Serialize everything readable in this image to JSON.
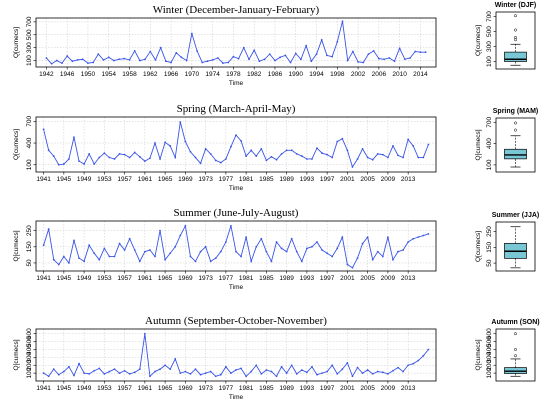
{
  "chart_data": [
    {
      "type": "line",
      "title": "Winter (December-January-February)",
      "xlabel": "Time",
      "ylabel": "Q[cumecs]",
      "xlim": [
        1940,
        2017
      ],
      "ylim": [
        0,
        760
      ],
      "xticks": [
        1942,
        1946,
        1950,
        1954,
        1958,
        1962,
        1966,
        1970,
        1974,
        1978,
        1982,
        1986,
        1990,
        1994,
        1998,
        2002,
        2006,
        2010,
        2014
      ],
      "yticks": [
        100,
        300,
        500,
        700
      ],
      "grid": true,
      "color": "#3a55e8",
      "x": [
        1942,
        1943,
        1944,
        1945,
        1946,
        1947,
        1948,
        1949,
        1950,
        1951,
        1952,
        1953,
        1954,
        1955,
        1956,
        1957,
        1958,
        1959,
        1960,
        1961,
        1962,
        1963,
        1964,
        1965,
        1966,
        1967,
        1968,
        1969,
        1970,
        1971,
        1972,
        1973,
        1974,
        1975,
        1976,
        1977,
        1978,
        1979,
        1980,
        1981,
        1982,
        1983,
        1984,
        1985,
        1986,
        1987,
        1988,
        1989,
        1990,
        1991,
        1992,
        1993,
        1994,
        1995,
        1996,
        1997,
        1998,
        1999,
        2000,
        2001,
        2002,
        2003,
        2004,
        2005,
        2006,
        2007,
        2008,
        2009,
        2010,
        2011,
        2012,
        2013,
        2014,
        2015
      ],
      "y": [
        140,
        50,
        100,
        60,
        170,
        90,
        110,
        120,
        60,
        70,
        200,
        110,
        150,
        100,
        120,
        130,
        110,
        250,
        100,
        120,
        240,
        110,
        300,
        90,
        70,
        220,
        150,
        100,
        520,
        250,
        70,
        90,
        110,
        140,
        60,
        70,
        160,
        130,
        300,
        120,
        260,
        90,
        120,
        200,
        100,
        150,
        180,
        70,
        210,
        120,
        330,
        90,
        200,
        420,
        180,
        160,
        390,
        710,
        100,
        240,
        80,
        70,
        200,
        250,
        130,
        120,
        140,
        90,
        290,
        120,
        140,
        240,
        230,
        230
      ]
    },
    {
      "type": "line",
      "title": "Spring (March-April-May)",
      "xlabel": "Time",
      "ylabel": "Q[cumecs]",
      "xlim": [
        1939.5,
        2018.5
      ],
      "ylim": [
        0,
        760
      ],
      "xticks": [
        1941,
        1945,
        1949,
        1953,
        1957,
        1961,
        1965,
        1969,
        1973,
        1977,
        1981,
        1985,
        1989,
        1993,
        1997,
        2001,
        2005,
        2009,
        2013
      ],
      "yticks": [
        100,
        400,
        700
      ],
      "grid": true,
      "color": "#3a55e8",
      "x": [
        1941,
        1942,
        1943,
        1944,
        1945,
        1946,
        1947,
        1948,
        1949,
        1950,
        1951,
        1952,
        1953,
        1954,
        1955,
        1956,
        1957,
        1958,
        1959,
        1960,
        1961,
        1962,
        1963,
        1964,
        1965,
        1966,
        1967,
        1968,
        1969,
        1970,
        1971,
        1972,
        1973,
        1974,
        1975,
        1976,
        1977,
        1978,
        1979,
        1980,
        1981,
        1982,
        1983,
        1984,
        1985,
        1986,
        1987,
        1988,
        1989,
        1990,
        1991,
        1992,
        1993,
        1994,
        1995,
        1996,
        1997,
        1998,
        1999,
        2000,
        2001,
        2002,
        2003,
        2004,
        2005,
        2006,
        2007,
        2008,
        2009,
        2010,
        2011,
        2012,
        2013,
        2014,
        2015,
        2016,
        2017
      ],
      "y": [
        590,
        300,
        220,
        100,
        110,
        180,
        480,
        150,
        110,
        250,
        110,
        200,
        260,
        200,
        180,
        250,
        240,
        200,
        270,
        210,
        150,
        190,
        400,
        180,
        410,
        360,
        200,
        690,
        420,
        280,
        200,
        120,
        320,
        250,
        160,
        130,
        180,
        350,
        510,
        430,
        220,
        300,
        220,
        320,
        160,
        210,
        170,
        250,
        300,
        300,
        250,
        220,
        180,
        180,
        330,
        260,
        240,
        200,
        420,
        460,
        300,
        70,
        180,
        320,
        200,
        170,
        250,
        240,
        200,
        360,
        230,
        200,
        450,
        360,
        200,
        200,
        380
      ]
    },
    {
      "type": "line",
      "title": "Summer (June-July-August)",
      "xlabel": "Time",
      "ylabel": "Q[cumecs]",
      "xlim": [
        1939.5,
        2018.5
      ],
      "ylim": [
        0,
        310
      ],
      "xticks": [
        1941,
        1945,
        1949,
        1953,
        1957,
        1961,
        1965,
        1969,
        1973,
        1977,
        1981,
        1985,
        1989,
        1993,
        1997,
        2001,
        2005,
        2009,
        2013
      ],
      "yticks": [
        50,
        150,
        250
      ],
      "grid": true,
      "color": "#3a55e8",
      "x": [
        1941,
        1942,
        1943,
        1944,
        1945,
        1946,
        1947,
        1948,
        1949,
        1950,
        1951,
        1952,
        1953,
        1954,
        1955,
        1956,
        1957,
        1958,
        1959,
        1960,
        1961,
        1962,
        1963,
        1964,
        1965,
        1966,
        1967,
        1968,
        1969,
        1970,
        1971,
        1972,
        1973,
        1974,
        1975,
        1976,
        1977,
        1978,
        1979,
        1980,
        1981,
        1982,
        1983,
        1984,
        1985,
        1986,
        1987,
        1988,
        1989,
        1990,
        1991,
        1992,
        1993,
        1994,
        1995,
        1996,
        1997,
        1998,
        1999,
        2000,
        2001,
        2002,
        2003,
        2004,
        2005,
        2006,
        2007,
        2008,
        2009,
        2010,
        2011,
        2012,
        2013,
        2014,
        2015,
        2016,
        2017
      ],
      "y": [
        160,
        260,
        70,
        40,
        90,
        50,
        190,
        80,
        60,
        160,
        110,
        70,
        140,
        90,
        90,
        170,
        130,
        200,
        130,
        60,
        120,
        130,
        90,
        250,
        70,
        110,
        150,
        220,
        280,
        90,
        60,
        120,
        150,
        60,
        80,
        120,
        180,
        280,
        120,
        90,
        210,
        60,
        150,
        200,
        120,
        60,
        180,
        140,
        120,
        200,
        120,
        60,
        140,
        150,
        180,
        130,
        110,
        90,
        140,
        210,
        40,
        20,
        80,
        170,
        210,
        70,
        120,
        90,
        210,
        70,
        120,
        130,
        180,
        200,
        210,
        220,
        230
      ]
    },
    {
      "type": "line",
      "title": "Autumn (September-October-November)",
      "xlabel": "Time",
      "ylabel": "Q[cumecs]",
      "xlim": [
        1939.5,
        2018.5
      ],
      "ylim": [
        0,
        660
      ],
      "xticks": [
        1941,
        1945,
        1949,
        1953,
        1957,
        1961,
        1965,
        1969,
        1973,
        1977,
        1981,
        1985,
        1989,
        1993,
        1997,
        2001,
        2005,
        2009,
        2013
      ],
      "yticks": [
        100,
        200,
        300,
        400,
        500,
        600
      ],
      "grid": true,
      "color": "#3a55e8",
      "x": [
        1941,
        1942,
        1943,
        1944,
        1945,
        1946,
        1947,
        1948,
        1949,
        1950,
        1951,
        1952,
        1953,
        1954,
        1955,
        1956,
        1957,
        1958,
        1959,
        1960,
        1961,
        1962,
        1963,
        1964,
        1965,
        1966,
        1967,
        1968,
        1969,
        1970,
        1971,
        1972,
        1973,
        1974,
        1975,
        1976,
        1977,
        1978,
        1979,
        1980,
        1981,
        1982,
        1983,
        1984,
        1985,
        1986,
        1987,
        1988,
        1989,
        1990,
        1991,
        1992,
        1993,
        1994,
        1995,
        1996,
        1997,
        1998,
        1999,
        2000,
        2001,
        2002,
        2003,
        2004,
        2005,
        2006,
        2007,
        2008,
        2009,
        2010,
        2011,
        2012,
        2013,
        2014,
        2015,
        2016,
        2017
      ],
      "y": [
        100,
        60,
        150,
        80,
        120,
        180,
        70,
        220,
        100,
        90,
        130,
        160,
        90,
        120,
        150,
        100,
        130,
        90,
        110,
        150,
        600,
        60,
        120,
        150,
        200,
        150,
        280,
        100,
        120,
        90,
        150,
        80,
        100,
        120,
        60,
        80,
        180,
        100,
        140,
        160,
        60,
        120,
        200,
        90,
        140,
        120,
        60,
        180,
        100,
        200,
        90,
        140,
        110,
        180,
        80,
        100,
        120,
        200,
        90,
        150,
        230,
        60,
        170,
        100,
        140,
        90,
        120,
        110,
        90,
        130,
        170,
        120,
        200,
        220,
        260,
        320,
        400
      ]
    },
    {
      "type": "box",
      "title": "Winter (DJF)",
      "ylabel": "Q[cumecs]",
      "ylim": [
        0,
        760
      ],
      "yticks": [
        100,
        300,
        500,
        700
      ],
      "color": "#79c7d5",
      "whisker_low": 50,
      "q1": 100,
      "median": 130,
      "q3": 225,
      "whisker_high": 330,
      "outliers": [
        390,
        420,
        520,
        710
      ]
    },
    {
      "type": "box",
      "title": "Spring (MAM)",
      "ylabel": "Q[cumecs]",
      "ylim": [
        0,
        760
      ],
      "yticks": [
        100,
        400,
        700
      ],
      "color": "#79c7d5",
      "whisker_low": 70,
      "q1": 185,
      "median": 240,
      "q3": 320,
      "whisker_high": 510,
      "outliers": [
        590,
        690
      ]
    },
    {
      "type": "box",
      "title": "Summer (JJA)",
      "ylabel": "Q[cumecs]",
      "ylim": [
        0,
        310
      ],
      "yticks": [
        50,
        150,
        250
      ],
      "color": "#79c7d5",
      "whisker_low": 20,
      "q1": 80,
      "median": 125,
      "q3": 175,
      "whisker_high": 280,
      "outliers": []
    },
    {
      "type": "box",
      "title": "Autumn (SON)",
      "ylabel": "Q[cumecs]",
      "ylim": [
        0,
        660
      ],
      "yticks": [
        100,
        200,
        300,
        400,
        500,
        600
      ],
      "color": "#79c7d5",
      "whisker_low": 60,
      "q1": 95,
      "median": 125,
      "q3": 170,
      "whisker_high": 280,
      "outliers": [
        320,
        400,
        600
      ]
    }
  ]
}
